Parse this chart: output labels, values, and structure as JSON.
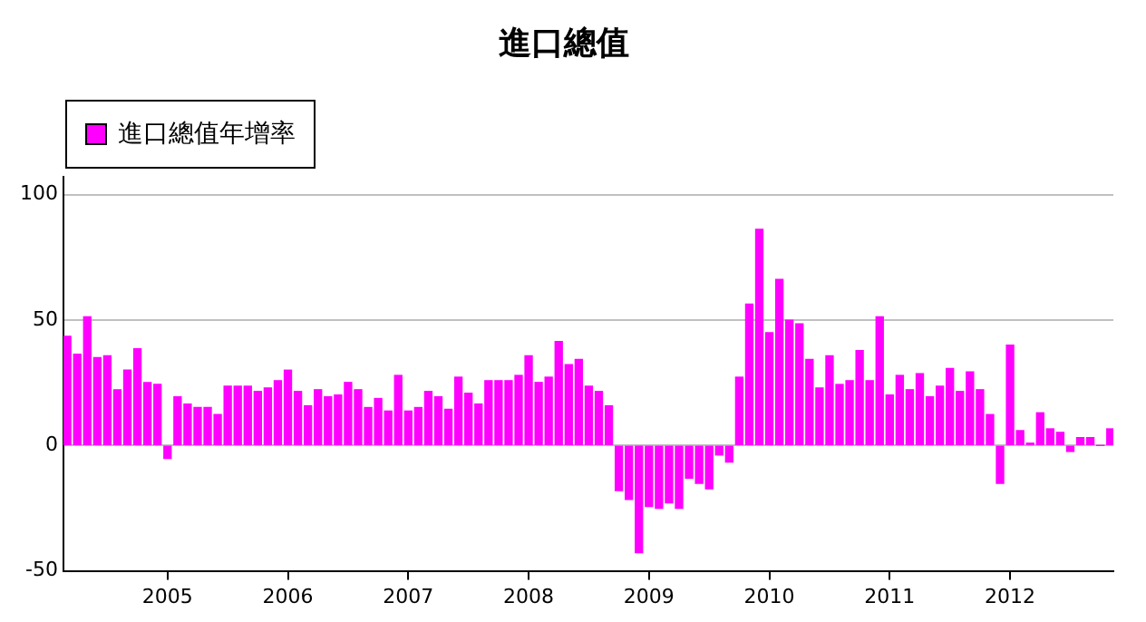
{
  "chart_data": {
    "type": "bar",
    "title": "進口總值",
    "x": [
      "2004-03",
      "2004-04",
      "2004-05",
      "2004-06",
      "2004-07",
      "2004-08",
      "2004-09",
      "2004-10",
      "2004-11",
      "2004-12",
      "2005-01",
      "2005-02",
      "2005-03",
      "2005-04",
      "2005-05",
      "2005-06",
      "2005-07",
      "2005-08",
      "2005-09",
      "2005-10",
      "2005-11",
      "2005-12",
      "2006-01",
      "2006-02",
      "2006-03",
      "2006-04",
      "2006-05",
      "2006-06",
      "2006-07",
      "2006-08",
      "2006-09",
      "2006-10",
      "2006-11",
      "2006-12",
      "2007-01",
      "2007-02",
      "2007-03",
      "2007-04",
      "2007-05",
      "2007-06",
      "2007-07",
      "2007-08",
      "2007-09",
      "2007-10",
      "2007-11",
      "2007-12",
      "2008-01",
      "2008-02",
      "2008-03",
      "2008-04",
      "2008-05",
      "2008-06",
      "2008-07",
      "2008-08",
      "2008-09",
      "2008-10",
      "2008-11",
      "2008-12",
      "2009-01",
      "2009-02",
      "2009-03",
      "2009-04",
      "2009-05",
      "2009-06",
      "2009-07",
      "2009-08",
      "2009-09",
      "2009-10",
      "2009-11",
      "2009-12",
      "2010-01",
      "2010-02",
      "2010-03",
      "2010-04",
      "2010-05",
      "2010-06",
      "2010-07",
      "2010-08",
      "2010-09",
      "2010-10",
      "2010-11",
      "2010-12",
      "2011-01",
      "2011-02",
      "2011-03",
      "2011-04",
      "2011-05",
      "2011-06",
      "2011-07",
      "2011-08",
      "2011-09",
      "2011-10",
      "2011-11",
      "2011-12",
      "2012-01",
      "2012-02",
      "2012-03",
      "2012-04",
      "2012-05",
      "2012-06",
      "2012-07",
      "2012-08",
      "2012-09",
      "2012-10",
      "2012-11"
    ],
    "series": [
      {
        "name": "進口總值年增率",
        "color": "#ff00ff",
        "values": [
          43.5,
          36.4,
          51.3,
          35.0,
          35.7,
          22.2,
          30.0,
          38.5,
          25.1,
          24.3,
          -5.2,
          19.4,
          16.5,
          15.1,
          15.1,
          12.3,
          23.6,
          23.6,
          23.6,
          21.5,
          22.9,
          25.8,
          30.0,
          21.5,
          15.8,
          22.2,
          19.4,
          20.1,
          25.1,
          22.2,
          15.1,
          18.7,
          13.7,
          27.9,
          13.7,
          15.1,
          21.5,
          19.4,
          14.4,
          27.2,
          20.8,
          16.5,
          25.8,
          25.8,
          25.8,
          27.9,
          35.7,
          25.1,
          27.2,
          41.4,
          32.2,
          34.3,
          23.6,
          21.5,
          15.8,
          -18.0,
          -21.5,
          -42.8,
          -24.3,
          -25.1,
          -22.9,
          -25.1,
          -13.0,
          -15.1,
          -17.3,
          -3.8,
          -6.6,
          27.2,
          56.3,
          86.1,
          44.9,
          66.2,
          49.9,
          48.5,
          34.3,
          22.9,
          35.7,
          24.3,
          25.8,
          37.8,
          25.8,
          51.3,
          20.1,
          27.9,
          22.2,
          28.6,
          19.4,
          23.6,
          30.7,
          21.5,
          29.3,
          22.2,
          12.3,
          -15.1,
          40.0,
          5.9,
          0.9,
          13.0,
          6.6,
          5.2,
          -2.4,
          3.1,
          3.1,
          0,
          6.6
        ]
      }
    ],
    "xlim": [
      "2004-02-20",
      "2012-11-10"
    ],
    "xticks": [
      {
        "value": "2005",
        "label": "2005"
      },
      {
        "value": "2006",
        "label": "2006"
      },
      {
        "value": "2007",
        "label": "2007"
      },
      {
        "value": "2008",
        "label": "2008"
      },
      {
        "value": "2009",
        "label": "2009"
      },
      {
        "value": "2010",
        "label": "2010"
      },
      {
        "value": "2011",
        "label": "2011"
      },
      {
        "value": "2012",
        "label": "2012"
      }
    ],
    "ylim": [
      -50,
      107
    ],
    "yticks": [
      -50,
      0,
      50,
      100
    ],
    "grid": "y",
    "legend": "top left"
  }
}
